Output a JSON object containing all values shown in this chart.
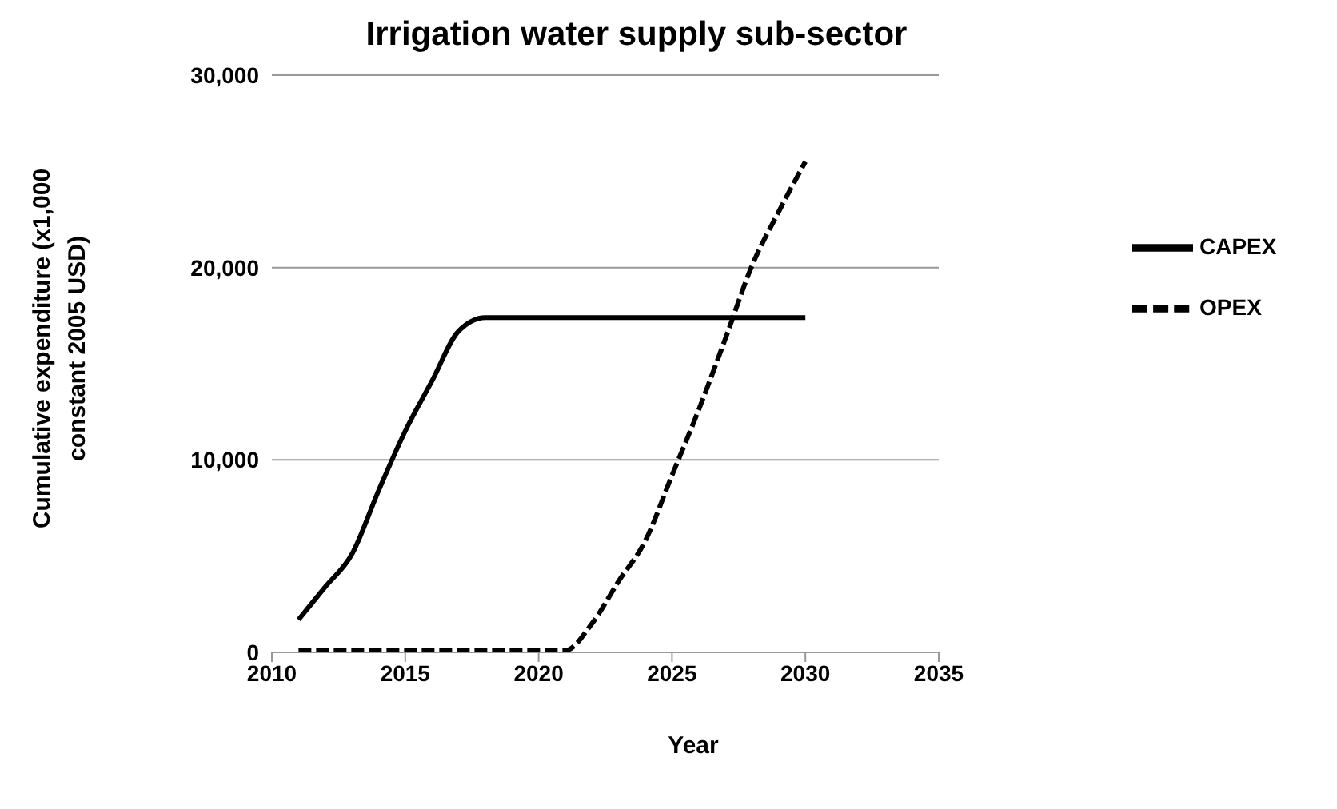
{
  "chart_data": {
    "type": "line",
    "title": "Irrigation water supply sub-sector",
    "xlabel": "Year",
    "ylabel": "Cumulative expenditure (x1,000 constant 2005 USD)",
    "x": [
      2011,
      2012,
      2013,
      2014,
      2015,
      2016,
      2017,
      2018,
      2019,
      2020,
      2021,
      2022,
      2023,
      2024,
      2025,
      2026,
      2027,
      2028,
      2029,
      2030
    ],
    "series": [
      {
        "name": "CAPEX",
        "color": "#000000",
        "line_style": "solid",
        "values": [
          1700,
          3400,
          5100,
          8400,
          11500,
          14100,
          16700,
          17400,
          17400,
          17400,
          17400,
          17400,
          17400,
          17400,
          17400,
          17400,
          17400,
          17400,
          17400,
          17400
        ]
      },
      {
        "name": "OPEX",
        "color": "#000000",
        "line_style": "dashed",
        "values": [
          100,
          100,
          100,
          100,
          100,
          100,
          100,
          100,
          100,
          100,
          100,
          1500,
          3700,
          5800,
          9200,
          12600,
          16300,
          20100,
          22900,
          25500
        ]
      }
    ],
    "xlim": [
      2010,
      2035
    ],
    "xticks": [
      2010,
      2015,
      2020,
      2025,
      2030,
      2035
    ],
    "ylim": [
      0,
      30000
    ],
    "yticks": [
      0,
      {
        "value": 10000,
        "label": "10,000"
      },
      {
        "value": 20000,
        "label": "20,000"
      },
      {
        "value": 30000,
        "label": "30,000"
      }
    ],
    "grid": "y",
    "legend": "right",
    "marker": "none"
  }
}
